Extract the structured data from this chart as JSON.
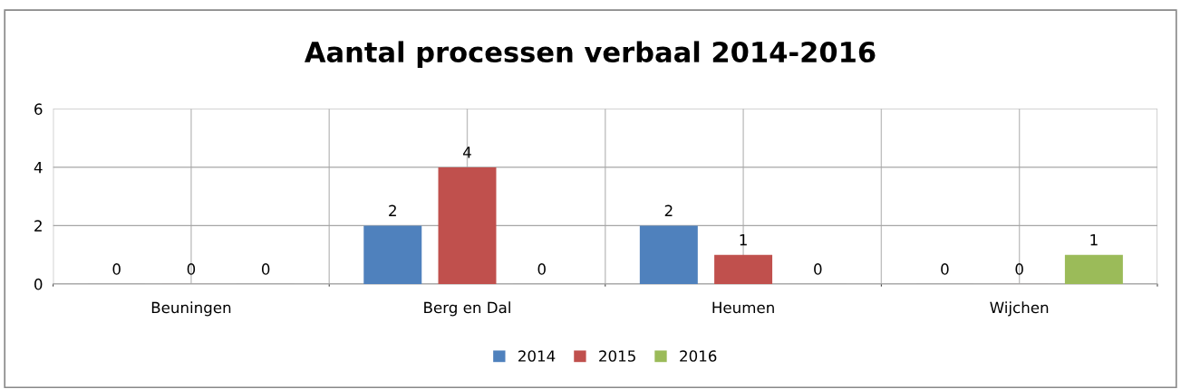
{
  "chart_data": {
    "type": "bar",
    "title": "Aantal processen verbaal 2014-2016",
    "categories": [
      "Beuningen",
      "Berg en Dal",
      "Heumen",
      "Wijchen"
    ],
    "series": [
      {
        "name": "2014",
        "color": "#4f81bd",
        "values": [
          0,
          2,
          2,
          0
        ]
      },
      {
        "name": "2015",
        "color": "#c0504d",
        "values": [
          0,
          4,
          1,
          0
        ]
      },
      {
        "name": "2016",
        "color": "#9bbb59",
        "values": [
          0,
          0,
          0,
          1
        ]
      }
    ],
    "ylim": [
      0,
      6
    ],
    "yticks": [
      0,
      2,
      4,
      6
    ],
    "grid": true,
    "legend": "bottom",
    "data_labels": true
  }
}
